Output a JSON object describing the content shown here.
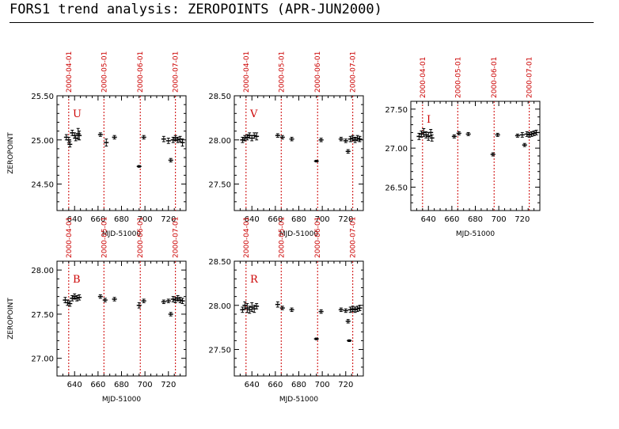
{
  "page": {
    "title": "FORS1 trend analysis: ZEROPOINTS (APR-JUN2000)"
  },
  "style": {
    "marker_color": "#000000",
    "date_line_color": "#cc0000",
    "axis_color": "#000000"
  },
  "chart_data": [
    {
      "type": "scatter",
      "band": "U",
      "xlabel": "MJD-51000",
      "ylabel": "ZEROPOINT",
      "xlim": [
        625,
        735
      ],
      "ylim": [
        24.2,
        25.5
      ],
      "xticks": [
        640,
        660,
        680,
        700,
        720
      ],
      "yticks": [
        24.5,
        25.0,
        25.5
      ],
      "ytick_labels": [
        "24.50",
        "25.00",
        "25.50"
      ],
      "date_markers": [
        {
          "label": "2000-04-01",
          "x": 635
        },
        {
          "label": "2000-05-01",
          "x": 665
        },
        {
          "label": "2000-06-01",
          "x": 696
        },
        {
          "label": "2000-07-01",
          "x": 726
        }
      ],
      "points": [
        {
          "x": 633,
          "y": 25.03,
          "err": 0.03
        },
        {
          "x": 635,
          "y": 25.0,
          "err": 0.03
        },
        {
          "x": 636,
          "y": 24.95,
          "err": 0.03
        },
        {
          "x": 638,
          "y": 25.08,
          "err": 0.03
        },
        {
          "x": 640,
          "y": 25.05,
          "err": 0.03
        },
        {
          "x": 641,
          "y": 25.02,
          "err": 0.03
        },
        {
          "x": 643,
          "y": 25.07,
          "err": 0.06
        },
        {
          "x": 644,
          "y": 25.05,
          "err": 0.05
        },
        {
          "x": 662,
          "y": 25.06,
          "err": 0.02
        },
        {
          "x": 667,
          "y": 24.97,
          "err": 0.04
        },
        {
          "x": 674,
          "y": 25.03,
          "err": 0.02
        },
        {
          "x": 695,
          "y": 24.7,
          "err": 0.01
        },
        {
          "x": 699,
          "y": 25.03,
          "err": 0.02
        },
        {
          "x": 716,
          "y": 25.01,
          "err": 0.03
        },
        {
          "x": 720,
          "y": 24.99,
          "err": 0.03
        },
        {
          "x": 722,
          "y": 24.77,
          "err": 0.02
        },
        {
          "x": 724,
          "y": 25.0,
          "err": 0.03
        },
        {
          "x": 726,
          "y": 25.02,
          "err": 0.03
        },
        {
          "x": 728,
          "y": 25.0,
          "err": 0.03
        },
        {
          "x": 730,
          "y": 25.01,
          "err": 0.03
        },
        {
          "x": 732,
          "y": 24.97,
          "err": 0.04
        }
      ]
    },
    {
      "type": "scatter",
      "band": "V",
      "xlabel": "MJD-51000",
      "ylabel": "",
      "xlim": [
        625,
        735
      ],
      "ylim": [
        27.2,
        28.5
      ],
      "xticks": [
        640,
        660,
        680,
        700,
        720
      ],
      "yticks": [
        27.5,
        28.0,
        28.5
      ],
      "ytick_labels": [
        "27.50",
        "28.00",
        "28.50"
      ],
      "date_markers": [
        {
          "label": "2000-04-01",
          "x": 635
        },
        {
          "label": "2000-05-01",
          "x": 665
        },
        {
          "label": "2000-06-01",
          "x": 696
        },
        {
          "label": "2000-07-01",
          "x": 726
        }
      ],
      "points": [
        {
          "x": 632,
          "y": 28.0,
          "err": 0.03
        },
        {
          "x": 634,
          "y": 28.02,
          "err": 0.03
        },
        {
          "x": 636,
          "y": 28.03,
          "err": 0.03
        },
        {
          "x": 638,
          "y": 28.05,
          "err": 0.03
        },
        {
          "x": 640,
          "y": 28.02,
          "err": 0.03
        },
        {
          "x": 642,
          "y": 28.05,
          "err": 0.03
        },
        {
          "x": 644,
          "y": 28.04,
          "err": 0.04
        },
        {
          "x": 662,
          "y": 28.05,
          "err": 0.02
        },
        {
          "x": 666,
          "y": 28.03,
          "err": 0.02
        },
        {
          "x": 674,
          "y": 28.01,
          "err": 0.02
        },
        {
          "x": 695,
          "y": 27.76,
          "err": 0.01
        },
        {
          "x": 699,
          "y": 28.0,
          "err": 0.02
        },
        {
          "x": 716,
          "y": 28.01,
          "err": 0.02
        },
        {
          "x": 720,
          "y": 27.99,
          "err": 0.02
        },
        {
          "x": 722,
          "y": 27.87,
          "err": 0.02
        },
        {
          "x": 724,
          "y": 28.01,
          "err": 0.03
        },
        {
          "x": 726,
          "y": 28.02,
          "err": 0.03
        },
        {
          "x": 728,
          "y": 28.0,
          "err": 0.03
        },
        {
          "x": 730,
          "y": 28.02,
          "err": 0.03
        },
        {
          "x": 732,
          "y": 28.01,
          "err": 0.03
        }
      ]
    },
    {
      "type": "scatter",
      "band": "I",
      "xlabel": "MJD-51000",
      "ylabel": "",
      "xlim": [
        625,
        735
      ],
      "ylim": [
        26.2,
        27.6
      ],
      "xticks": [
        640,
        660,
        680,
        700,
        720
      ],
      "yticks": [
        26.5,
        27.0,
        27.5
      ],
      "ytick_labels": [
        "26.50",
        "27.00",
        "27.50"
      ],
      "date_markers": [
        {
          "label": "2000-04-01",
          "x": 635
        },
        {
          "label": "2000-05-01",
          "x": 665
        },
        {
          "label": "2000-06-01",
          "x": 696
        },
        {
          "label": "2000-07-01",
          "x": 726
        }
      ],
      "points": [
        {
          "x": 632,
          "y": 27.15,
          "err": 0.04
        },
        {
          "x": 634,
          "y": 27.18,
          "err": 0.04
        },
        {
          "x": 636,
          "y": 27.2,
          "err": 0.05
        },
        {
          "x": 638,
          "y": 27.17,
          "err": 0.04
        },
        {
          "x": 640,
          "y": 27.15,
          "err": 0.05
        },
        {
          "x": 642,
          "y": 27.2,
          "err": 0.04
        },
        {
          "x": 643,
          "y": 27.13,
          "err": 0.04
        },
        {
          "x": 662,
          "y": 27.15,
          "err": 0.02
        },
        {
          "x": 666,
          "y": 27.19,
          "err": 0.02
        },
        {
          "x": 674,
          "y": 27.18,
          "err": 0.02
        },
        {
          "x": 695,
          "y": 26.92,
          "err": 0.02
        },
        {
          "x": 699,
          "y": 27.17,
          "err": 0.02
        },
        {
          "x": 716,
          "y": 27.16,
          "err": 0.02
        },
        {
          "x": 720,
          "y": 27.17,
          "err": 0.03
        },
        {
          "x": 722,
          "y": 27.04,
          "err": 0.02
        },
        {
          "x": 724,
          "y": 27.18,
          "err": 0.03
        },
        {
          "x": 726,
          "y": 27.17,
          "err": 0.03
        },
        {
          "x": 728,
          "y": 27.18,
          "err": 0.03
        },
        {
          "x": 730,
          "y": 27.19,
          "err": 0.03
        },
        {
          "x": 732,
          "y": 27.2,
          "err": 0.03
        }
      ]
    },
    {
      "type": "scatter",
      "band": "B",
      "xlabel": "MJD-51000",
      "ylabel": "ZEROPOINT",
      "xlim": [
        625,
        735
      ],
      "ylim": [
        26.8,
        28.1
      ],
      "xticks": [
        640,
        660,
        680,
        700,
        720
      ],
      "yticks": [
        27.0,
        27.5,
        28.0
      ],
      "ytick_labels": [
        "27.00",
        "27.50",
        "28.00"
      ],
      "date_markers": [
        {
          "label": "2000-04-01",
          "x": 635
        },
        {
          "label": "2000-05-01",
          "x": 665
        },
        {
          "label": "2000-06-01",
          "x": 696
        },
        {
          "label": "2000-07-01",
          "x": 726
        }
      ],
      "points": [
        {
          "x": 632,
          "y": 27.66,
          "err": 0.03
        },
        {
          "x": 634,
          "y": 27.63,
          "err": 0.03
        },
        {
          "x": 636,
          "y": 27.62,
          "err": 0.03
        },
        {
          "x": 638,
          "y": 27.68,
          "err": 0.03
        },
        {
          "x": 640,
          "y": 27.7,
          "err": 0.03
        },
        {
          "x": 642,
          "y": 27.68,
          "err": 0.03
        },
        {
          "x": 644,
          "y": 27.69,
          "err": 0.03
        },
        {
          "x": 662,
          "y": 27.7,
          "err": 0.02
        },
        {
          "x": 666,
          "y": 27.66,
          "err": 0.02
        },
        {
          "x": 674,
          "y": 27.67,
          "err": 0.02
        },
        {
          "x": 695,
          "y": 27.6,
          "err": 0.03
        },
        {
          "x": 699,
          "y": 27.65,
          "err": 0.02
        },
        {
          "x": 716,
          "y": 27.64,
          "err": 0.02
        },
        {
          "x": 720,
          "y": 27.65,
          "err": 0.02
        },
        {
          "x": 722,
          "y": 27.5,
          "err": 0.02
        },
        {
          "x": 724,
          "y": 27.67,
          "err": 0.03
        },
        {
          "x": 726,
          "y": 27.66,
          "err": 0.03
        },
        {
          "x": 728,
          "y": 27.68,
          "err": 0.03
        },
        {
          "x": 730,
          "y": 27.66,
          "err": 0.03
        },
        {
          "x": 732,
          "y": 27.65,
          "err": 0.03
        }
      ]
    },
    {
      "type": "scatter",
      "band": "R",
      "xlabel": "MJD-51000",
      "ylabel": "",
      "xlim": [
        625,
        735
      ],
      "ylim": [
        27.2,
        28.5
      ],
      "xticks": [
        640,
        660,
        680,
        700,
        720
      ],
      "yticks": [
        27.5,
        28.0,
        28.5
      ],
      "ytick_labels": [
        "27.50",
        "28.00",
        "28.50"
      ],
      "date_markers": [
        {
          "label": "2000-04-01",
          "x": 635
        },
        {
          "label": "2000-05-01",
          "x": 665
        },
        {
          "label": "2000-06-01",
          "x": 696
        },
        {
          "label": "2000-07-01",
          "x": 726
        }
      ],
      "points": [
        {
          "x": 632,
          "y": 27.95,
          "err": 0.03
        },
        {
          "x": 634,
          "y": 28.0,
          "err": 0.04
        },
        {
          "x": 636,
          "y": 27.97,
          "err": 0.05
        },
        {
          "x": 638,
          "y": 27.95,
          "err": 0.04
        },
        {
          "x": 640,
          "y": 27.98,
          "err": 0.05
        },
        {
          "x": 642,
          "y": 27.96,
          "err": 0.04
        },
        {
          "x": 644,
          "y": 27.99,
          "err": 0.03
        },
        {
          "x": 662,
          "y": 28.01,
          "err": 0.03
        },
        {
          "x": 666,
          "y": 27.97,
          "err": 0.02
        },
        {
          "x": 674,
          "y": 27.95,
          "err": 0.02
        },
        {
          "x": 695,
          "y": 27.62,
          "err": 0.01
        },
        {
          "x": 699,
          "y": 27.93,
          "err": 0.02
        },
        {
          "x": 716,
          "y": 27.95,
          "err": 0.02
        },
        {
          "x": 720,
          "y": 27.94,
          "err": 0.02
        },
        {
          "x": 722,
          "y": 27.82,
          "err": 0.02
        },
        {
          "x": 723,
          "y": 27.6,
          "err": 0.01
        },
        {
          "x": 724,
          "y": 27.95,
          "err": 0.03
        },
        {
          "x": 726,
          "y": 27.96,
          "err": 0.03
        },
        {
          "x": 728,
          "y": 27.95,
          "err": 0.03
        },
        {
          "x": 730,
          "y": 27.96,
          "err": 0.03
        },
        {
          "x": 732,
          "y": 27.97,
          "err": 0.03
        }
      ]
    }
  ]
}
